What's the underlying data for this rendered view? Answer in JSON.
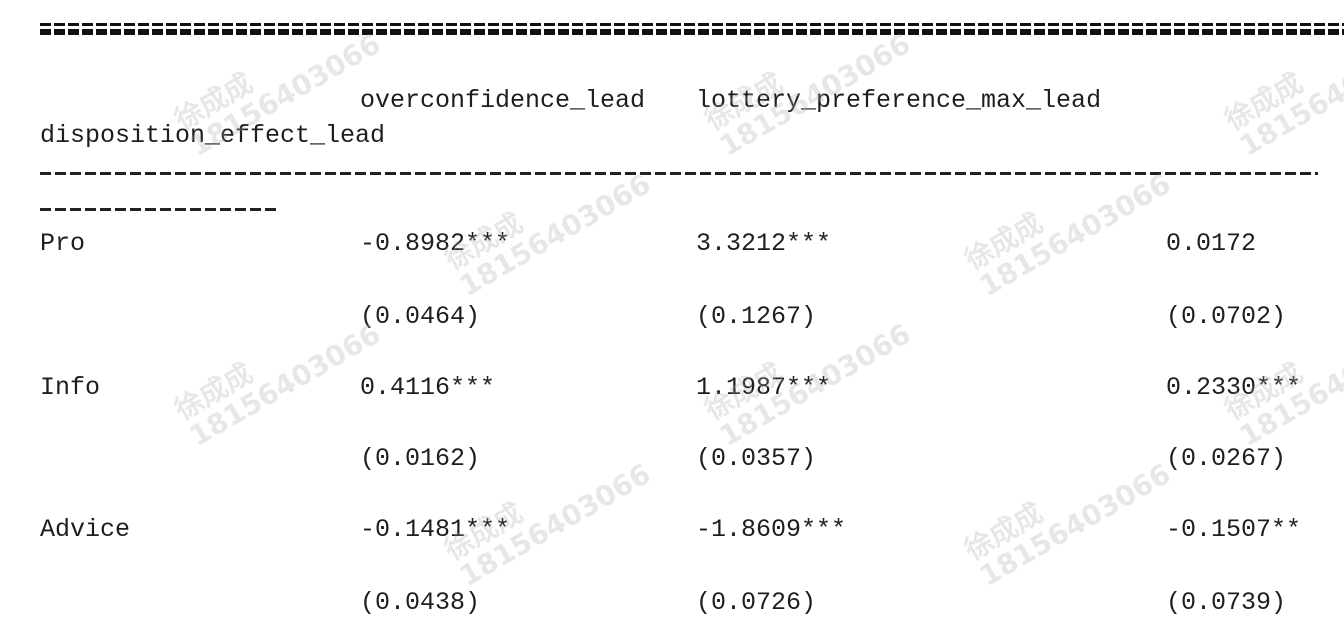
{
  "header": {
    "col1": "overconfidence_lead",
    "col2": "lottery_preference_max_lead",
    "col3": "disposition_effect_lead"
  },
  "rows": [
    {
      "label": "Pro",
      "v1": "-0.8982***",
      "v2": "3.3212***",
      "v3": "0.0172",
      "se1": "(0.0464)",
      "se2": "(0.1267)",
      "se3": "(0.0702)"
    },
    {
      "label": "Info",
      "v1": "0.4116***",
      "v2": "1.1987***",
      "v3": "0.2330***",
      "se1": "(0.0162)",
      "se2": "(0.0357)",
      "se3": "(0.0267)"
    },
    {
      "label": "Advice",
      "v1": "-0.1481***",
      "v2": "-1.8609***",
      "v3": "-0.1507**",
      "se1": "(0.0438)",
      "se2": "(0.0726)",
      "se3": "(0.0739)"
    }
  ],
  "watermark": {
    "name": "徐成成",
    "phone": "18156403066"
  }
}
